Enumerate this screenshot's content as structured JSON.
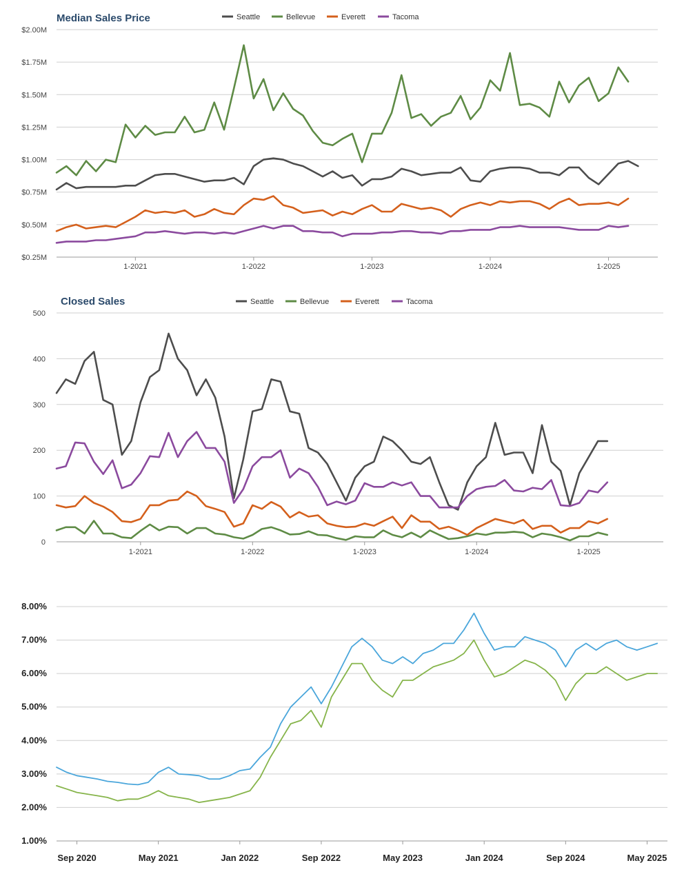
{
  "chart_data": [
    {
      "type": "line",
      "title": "Median Sales Price",
      "ylabel": "",
      "xlabel": "",
      "y_ticks": [
        "$2.00M",
        "$1.75M",
        "$1.50M",
        "$1.25M",
        "$1.00M",
        "$0.75M",
        "$0.50M",
        "$0.25M"
      ],
      "ylim": [
        0.25,
        2.0
      ],
      "x_ticks": [
        "1-2021",
        "1-2022",
        "1-2023",
        "1-2024",
        "1-2025"
      ],
      "x_tick_index": [
        8,
        20,
        32,
        44,
        56
      ],
      "x_count": 62,
      "grid": true,
      "legend_position": "top",
      "series": [
        {
          "name": "Seattle",
          "color": "#4d4d4d",
          "values": [
            0.77,
            0.82,
            0.78,
            0.79,
            0.79,
            0.79,
            0.79,
            0.8,
            0.8,
            0.84,
            0.88,
            0.89,
            0.89,
            0.87,
            0.85,
            0.83,
            0.84,
            0.84,
            0.86,
            0.81,
            0.95,
            1.0,
            1.01,
            1.0,
            0.97,
            0.95,
            0.91,
            0.87,
            0.91,
            0.86,
            0.88,
            0.8,
            0.85,
            0.85,
            0.87,
            0.93,
            0.91,
            0.88,
            0.89,
            0.9,
            0.9,
            0.94,
            0.84,
            0.83,
            0.91,
            0.93,
            0.94,
            0.94,
            0.93,
            0.9,
            0.9,
            0.88,
            0.94,
            0.94,
            0.86,
            0.81,
            0.89,
            0.97,
            0.99,
            0.95
          ]
        },
        {
          "name": "Bellevue",
          "color": "#5e8b45",
          "values": [
            0.9,
            0.95,
            0.88,
            0.99,
            0.91,
            1.0,
            0.98,
            1.27,
            1.17,
            1.26,
            1.19,
            1.21,
            1.21,
            1.33,
            1.21,
            1.23,
            1.44,
            1.23,
            1.55,
            1.88,
            1.47,
            1.62,
            1.38,
            1.51,
            1.39,
            1.34,
            1.22,
            1.13,
            1.11,
            1.16,
            1.2,
            0.98,
            1.2,
            1.2,
            1.36,
            1.65,
            1.32,
            1.35,
            1.26,
            1.33,
            1.36,
            1.49,
            1.31,
            1.4,
            1.61,
            1.53,
            1.82,
            1.42,
            1.43,
            1.4,
            1.33,
            1.6,
            1.44,
            1.57,
            1.63,
            1.45,
            1.51,
            1.71,
            1.6
          ]
        },
        {
          "name": "Everett",
          "color": "#d4601c",
          "values": [
            0.45,
            0.48,
            0.5,
            0.47,
            0.48,
            0.49,
            0.48,
            0.52,
            0.56,
            0.61,
            0.59,
            0.6,
            0.59,
            0.61,
            0.56,
            0.58,
            0.62,
            0.59,
            0.58,
            0.65,
            0.7,
            0.69,
            0.72,
            0.65,
            0.63,
            0.59,
            0.6,
            0.61,
            0.57,
            0.6,
            0.58,
            0.62,
            0.65,
            0.6,
            0.6,
            0.66,
            0.64,
            0.62,
            0.63,
            0.61,
            0.56,
            0.62,
            0.65,
            0.67,
            0.65,
            0.68,
            0.67,
            0.68,
            0.68,
            0.66,
            0.62,
            0.67,
            0.7,
            0.65,
            0.66,
            0.66,
            0.67,
            0.65,
            0.7
          ]
        },
        {
          "name": "Tacoma",
          "color": "#8b4a9e",
          "values": [
            0.36,
            0.37,
            0.37,
            0.37,
            0.38,
            0.38,
            0.39,
            0.4,
            0.41,
            0.44,
            0.44,
            0.45,
            0.44,
            0.43,
            0.44,
            0.44,
            0.43,
            0.44,
            0.43,
            0.45,
            0.47,
            0.49,
            0.47,
            0.49,
            0.49,
            0.45,
            0.45,
            0.44,
            0.44,
            0.41,
            0.43,
            0.43,
            0.43,
            0.44,
            0.44,
            0.45,
            0.45,
            0.44,
            0.44,
            0.43,
            0.45,
            0.45,
            0.46,
            0.46,
            0.46,
            0.48,
            0.48,
            0.49,
            0.48,
            0.48,
            0.48,
            0.48,
            0.47,
            0.46,
            0.46,
            0.46,
            0.49,
            0.48,
            0.49
          ]
        }
      ]
    },
    {
      "type": "line",
      "title": "Closed Sales",
      "ylabel": "",
      "xlabel": "",
      "y_ticks": [
        "500",
        "400",
        "300",
        "200",
        "100",
        "0"
      ],
      "ylim": [
        0,
        500
      ],
      "x_ticks": [
        "1-2021",
        "1-2022",
        "1-2023",
        "1-2024",
        "1-2025"
      ],
      "x_tick_index": [
        9,
        21,
        33,
        45,
        57
      ],
      "x_count": 66,
      "grid": true,
      "legend_position": "top",
      "series": [
        {
          "name": "Seattle",
          "color": "#4d4d4d",
          "values": [
            325,
            355,
            345,
            395,
            415,
            310,
            300,
            190,
            220,
            305,
            360,
            375,
            455,
            400,
            375,
            320,
            355,
            315,
            230,
            95,
            180,
            285,
            290,
            355,
            350,
            285,
            280,
            205,
            195,
            170,
            130,
            90,
            140,
            165,
            175,
            230,
            220,
            200,
            175,
            170,
            185,
            130,
            80,
            70,
            130,
            165,
            185,
            260,
            190,
            195,
            195,
            150,
            255,
            175,
            155,
            80,
            150,
            185,
            220,
            220
          ]
        },
        {
          "name": "Bellevue",
          "color": "#5e8b45",
          "values": [
            25,
            32,
            32,
            18,
            46,
            18,
            18,
            10,
            8,
            24,
            38,
            25,
            33,
            32,
            18,
            30,
            30,
            18,
            16,
            10,
            7,
            15,
            28,
            32,
            25,
            16,
            17,
            23,
            15,
            14,
            8,
            4,
            12,
            10,
            10,
            25,
            15,
            10,
            20,
            10,
            25,
            15,
            6,
            8,
            12,
            18,
            15,
            20,
            20,
            22,
            20,
            10,
            18,
            15,
            10,
            3,
            12,
            12,
            20,
            15
          ]
        },
        {
          "name": "Everett",
          "color": "#d4601c",
          "values": [
            80,
            75,
            78,
            100,
            85,
            77,
            65,
            45,
            43,
            50,
            80,
            80,
            90,
            92,
            110,
            100,
            78,
            72,
            65,
            33,
            40,
            80,
            72,
            87,
            77,
            53,
            65,
            55,
            58,
            40,
            35,
            32,
            33,
            40,
            35,
            45,
            55,
            30,
            58,
            44,
            44,
            28,
            33,
            25,
            15,
            30,
            40,
            50,
            45,
            40,
            48,
            28,
            35,
            35,
            20,
            30,
            30,
            45,
            40,
            50
          ]
        },
        {
          "name": "Tacoma",
          "color": "#8b4a9e",
          "values": [
            160,
            165,
            217,
            215,
            175,
            148,
            178,
            117,
            125,
            150,
            187,
            185,
            238,
            185,
            220,
            240,
            205,
            205,
            175,
            85,
            115,
            165,
            185,
            185,
            200,
            140,
            160,
            150,
            120,
            80,
            88,
            82,
            90,
            128,
            120,
            120,
            130,
            123,
            130,
            100,
            100,
            75,
            75,
            75,
            100,
            115,
            120,
            122,
            135,
            112,
            110,
            118,
            115,
            135,
            80,
            78,
            85,
            112,
            108,
            130
          ]
        }
      ]
    },
    {
      "type": "line",
      "title": "",
      "ylabel": "",
      "xlabel": "",
      "y_ticks": [
        "8.00%",
        "7.00%",
        "6.00%",
        "5.00%",
        "4.00%",
        "3.00%",
        "2.00%",
        "1.00%"
      ],
      "ylim": [
        1.0,
        8.0
      ],
      "x_ticks": [
        "Sep 2020",
        "May 2021",
        "Jan 2022",
        "Sep 2022",
        "May 2023",
        "Jan 2024",
        "Sep 2024",
        "May 2025"
      ],
      "x_tick_index": [
        2,
        10,
        18,
        26,
        34,
        42,
        50,
        58
      ],
      "x_count": 61,
      "grid": true,
      "legend_position": "none",
      "series": [
        {
          "color": "#4aa6db",
          "values": [
            3.2,
            3.05,
            2.95,
            2.9,
            2.85,
            2.78,
            2.75,
            2.7,
            2.68,
            2.75,
            3.05,
            3.2,
            3.0,
            2.98,
            2.95,
            2.85,
            2.85,
            2.95,
            3.1,
            3.15,
            3.5,
            3.8,
            4.5,
            5.0,
            5.3,
            5.6,
            5.1,
            5.6,
            6.2,
            6.8,
            7.05,
            6.8,
            6.4,
            6.3,
            6.5,
            6.3,
            6.6,
            6.7,
            6.9,
            6.9,
            7.3,
            7.8,
            7.2,
            6.7,
            6.8,
            6.8,
            7.1,
            7.0,
            6.9,
            6.7,
            6.2,
            6.7,
            6.9,
            6.7,
            6.9,
            7.0,
            6.8,
            6.7,
            6.8,
            6.9
          ]
        },
        {
          "color": "#86b44a",
          "values": [
            2.65,
            2.55,
            2.45,
            2.4,
            2.35,
            2.3,
            2.2,
            2.25,
            2.25,
            2.35,
            2.5,
            2.35,
            2.3,
            2.25,
            2.15,
            2.2,
            2.25,
            2.3,
            2.4,
            2.5,
            2.9,
            3.5,
            4.0,
            4.5,
            4.6,
            4.9,
            4.4,
            5.3,
            5.8,
            6.3,
            6.3,
            5.8,
            5.5,
            5.3,
            5.8,
            5.8,
            6.0,
            6.2,
            6.3,
            6.4,
            6.6,
            7.0,
            6.4,
            5.9,
            6.0,
            6.2,
            6.4,
            6.3,
            6.1,
            5.8,
            5.2,
            5.7,
            6.0,
            6.0,
            6.2,
            6.0,
            5.8,
            5.9,
            6.0,
            6.0
          ]
        }
      ]
    }
  ]
}
